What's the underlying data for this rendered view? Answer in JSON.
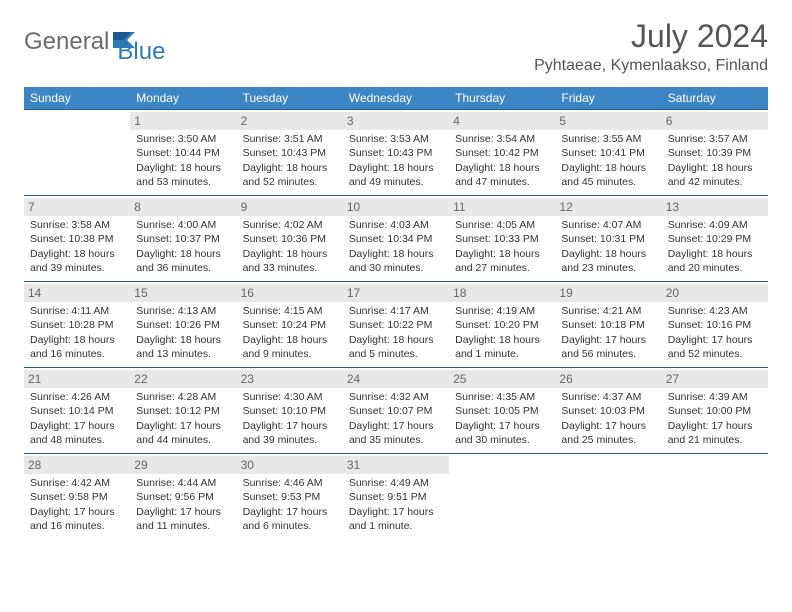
{
  "logo": {
    "part1": "General",
    "part2": "Blue"
  },
  "title": "July 2024",
  "location": "Pyhtaeae, Kymenlaakso, Finland",
  "colors": {
    "header_bg": "#3d86c6",
    "header_text": "#ffffff",
    "daynum_bg": "#e8e8e8",
    "daynum_text": "#666666",
    "border": "#2a5a88",
    "logo_gray": "#6b6b6b",
    "logo_blue": "#2a7ab8",
    "text": "#333333"
  },
  "daysOfWeek": [
    "Sunday",
    "Monday",
    "Tuesday",
    "Wednesday",
    "Thursday",
    "Friday",
    "Saturday"
  ],
  "weeks": [
    [
      {
        "n": "",
        "sunrise": "",
        "sunset": "",
        "day": ""
      },
      {
        "n": "1",
        "sunrise": "Sunrise: 3:50 AM",
        "sunset": "Sunset: 10:44 PM",
        "day": "Daylight: 18 hours and 53 minutes."
      },
      {
        "n": "2",
        "sunrise": "Sunrise: 3:51 AM",
        "sunset": "Sunset: 10:43 PM",
        "day": "Daylight: 18 hours and 52 minutes."
      },
      {
        "n": "3",
        "sunrise": "Sunrise: 3:53 AM",
        "sunset": "Sunset: 10:43 PM",
        "day": "Daylight: 18 hours and 49 minutes."
      },
      {
        "n": "4",
        "sunrise": "Sunrise: 3:54 AM",
        "sunset": "Sunset: 10:42 PM",
        "day": "Daylight: 18 hours and 47 minutes."
      },
      {
        "n": "5",
        "sunrise": "Sunrise: 3:55 AM",
        "sunset": "Sunset: 10:41 PM",
        "day": "Daylight: 18 hours and 45 minutes."
      },
      {
        "n": "6",
        "sunrise": "Sunrise: 3:57 AM",
        "sunset": "Sunset: 10:39 PM",
        "day": "Daylight: 18 hours and 42 minutes."
      }
    ],
    [
      {
        "n": "7",
        "sunrise": "Sunrise: 3:58 AM",
        "sunset": "Sunset: 10:38 PM",
        "day": "Daylight: 18 hours and 39 minutes."
      },
      {
        "n": "8",
        "sunrise": "Sunrise: 4:00 AM",
        "sunset": "Sunset: 10:37 PM",
        "day": "Daylight: 18 hours and 36 minutes."
      },
      {
        "n": "9",
        "sunrise": "Sunrise: 4:02 AM",
        "sunset": "Sunset: 10:36 PM",
        "day": "Daylight: 18 hours and 33 minutes."
      },
      {
        "n": "10",
        "sunrise": "Sunrise: 4:03 AM",
        "sunset": "Sunset: 10:34 PM",
        "day": "Daylight: 18 hours and 30 minutes."
      },
      {
        "n": "11",
        "sunrise": "Sunrise: 4:05 AM",
        "sunset": "Sunset: 10:33 PM",
        "day": "Daylight: 18 hours and 27 minutes."
      },
      {
        "n": "12",
        "sunrise": "Sunrise: 4:07 AM",
        "sunset": "Sunset: 10:31 PM",
        "day": "Daylight: 18 hours and 23 minutes."
      },
      {
        "n": "13",
        "sunrise": "Sunrise: 4:09 AM",
        "sunset": "Sunset: 10:29 PM",
        "day": "Daylight: 18 hours and 20 minutes."
      }
    ],
    [
      {
        "n": "14",
        "sunrise": "Sunrise: 4:11 AM",
        "sunset": "Sunset: 10:28 PM",
        "day": "Daylight: 18 hours and 16 minutes."
      },
      {
        "n": "15",
        "sunrise": "Sunrise: 4:13 AM",
        "sunset": "Sunset: 10:26 PM",
        "day": "Daylight: 18 hours and 13 minutes."
      },
      {
        "n": "16",
        "sunrise": "Sunrise: 4:15 AM",
        "sunset": "Sunset: 10:24 PM",
        "day": "Daylight: 18 hours and 9 minutes."
      },
      {
        "n": "17",
        "sunrise": "Sunrise: 4:17 AM",
        "sunset": "Sunset: 10:22 PM",
        "day": "Daylight: 18 hours and 5 minutes."
      },
      {
        "n": "18",
        "sunrise": "Sunrise: 4:19 AM",
        "sunset": "Sunset: 10:20 PM",
        "day": "Daylight: 18 hours and 1 minute."
      },
      {
        "n": "19",
        "sunrise": "Sunrise: 4:21 AM",
        "sunset": "Sunset: 10:18 PM",
        "day": "Daylight: 17 hours and 56 minutes."
      },
      {
        "n": "20",
        "sunrise": "Sunrise: 4:23 AM",
        "sunset": "Sunset: 10:16 PM",
        "day": "Daylight: 17 hours and 52 minutes."
      }
    ],
    [
      {
        "n": "21",
        "sunrise": "Sunrise: 4:26 AM",
        "sunset": "Sunset: 10:14 PM",
        "day": "Daylight: 17 hours and 48 minutes."
      },
      {
        "n": "22",
        "sunrise": "Sunrise: 4:28 AM",
        "sunset": "Sunset: 10:12 PM",
        "day": "Daylight: 17 hours and 44 minutes."
      },
      {
        "n": "23",
        "sunrise": "Sunrise: 4:30 AM",
        "sunset": "Sunset: 10:10 PM",
        "day": "Daylight: 17 hours and 39 minutes."
      },
      {
        "n": "24",
        "sunrise": "Sunrise: 4:32 AM",
        "sunset": "Sunset: 10:07 PM",
        "day": "Daylight: 17 hours and 35 minutes."
      },
      {
        "n": "25",
        "sunrise": "Sunrise: 4:35 AM",
        "sunset": "Sunset: 10:05 PM",
        "day": "Daylight: 17 hours and 30 minutes."
      },
      {
        "n": "26",
        "sunrise": "Sunrise: 4:37 AM",
        "sunset": "Sunset: 10:03 PM",
        "day": "Daylight: 17 hours and 25 minutes."
      },
      {
        "n": "27",
        "sunrise": "Sunrise: 4:39 AM",
        "sunset": "Sunset: 10:00 PM",
        "day": "Daylight: 17 hours and 21 minutes."
      }
    ],
    [
      {
        "n": "28",
        "sunrise": "Sunrise: 4:42 AM",
        "sunset": "Sunset: 9:58 PM",
        "day": "Daylight: 17 hours and 16 minutes."
      },
      {
        "n": "29",
        "sunrise": "Sunrise: 4:44 AM",
        "sunset": "Sunset: 9:56 PM",
        "day": "Daylight: 17 hours and 11 minutes."
      },
      {
        "n": "30",
        "sunrise": "Sunrise: 4:46 AM",
        "sunset": "Sunset: 9:53 PM",
        "day": "Daylight: 17 hours and 6 minutes."
      },
      {
        "n": "31",
        "sunrise": "Sunrise: 4:49 AM",
        "sunset": "Sunset: 9:51 PM",
        "day": "Daylight: 17 hours and 1 minute."
      },
      {
        "n": "",
        "sunrise": "",
        "sunset": "",
        "day": ""
      },
      {
        "n": "",
        "sunrise": "",
        "sunset": "",
        "day": ""
      },
      {
        "n": "",
        "sunrise": "",
        "sunset": "",
        "day": ""
      }
    ]
  ]
}
